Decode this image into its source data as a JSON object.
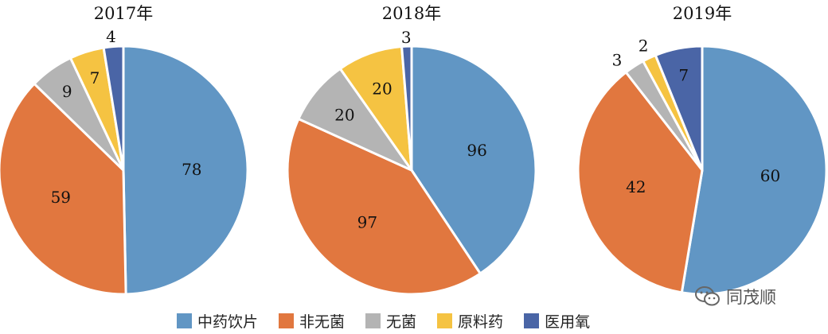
{
  "chart_data": [
    {
      "type": "pie",
      "title": "2017年",
      "categories": [
        "中药饮片",
        "非无菌",
        "无菌",
        "原料药",
        "医用氧"
      ],
      "values": [
        78,
        59,
        9,
        7,
        4
      ]
    },
    {
      "type": "pie",
      "title": "2018年",
      "categories": [
        "中药饮片",
        "非无菌",
        "无菌",
        "原料药",
        "医用氧"
      ],
      "values": [
        96,
        97,
        20,
        20,
        3
      ]
    },
    {
      "type": "pie",
      "title": "2019年",
      "categories": [
        "中药饮片",
        "非无菌",
        "无菌",
        "原料药",
        "医用氧"
      ],
      "values": [
        60,
        42,
        3,
        2,
        7
      ]
    }
  ],
  "legend": {
    "placement": "bottom",
    "items": [
      {
        "label": "中药饮片",
        "color": "#6196c4"
      },
      {
        "label": "非无菌",
        "color": "#e1773f"
      },
      {
        "label": "无菌",
        "color": "#b4b4b4"
      },
      {
        "label": "原料药",
        "color": "#f5c342"
      },
      {
        "label": "医用氧",
        "color": "#4a65a6"
      }
    ]
  },
  "watermark": {
    "text": "同茂顺",
    "icon": "wechat-icon"
  }
}
